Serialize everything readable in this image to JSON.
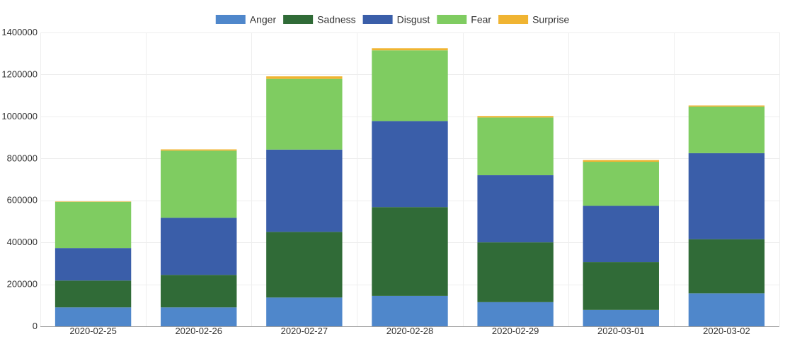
{
  "chart_data": {
    "type": "bar",
    "stacked": true,
    "categories": [
      "2020-02-25",
      "2020-02-26",
      "2020-02-27",
      "2020-02-28",
      "2020-02-29",
      "2020-03-01",
      "2020-03-02"
    ],
    "series": [
      {
        "name": "Anger",
        "color": "#4f87cb",
        "values": [
          90000,
          90000,
          137000,
          145000,
          115000,
          78000,
          157000
        ]
      },
      {
        "name": "Sadness",
        "color": "#306b37",
        "values": [
          128000,
          155000,
          313000,
          423000,
          285000,
          228000,
          258000
        ]
      },
      {
        "name": "Disgust",
        "color": "#3a5ea9",
        "values": [
          155000,
          272000,
          392000,
          410000,
          320000,
          268000,
          410000
        ]
      },
      {
        "name": "Fear",
        "color": "#7fcc61",
        "values": [
          220000,
          320000,
          337000,
          337000,
          275000,
          210000,
          222000
        ]
      },
      {
        "name": "Surprise",
        "color": "#f0b432",
        "values": [
          2000,
          6000,
          12000,
          10000,
          7000,
          8000,
          5000
        ]
      }
    ],
    "yticks": [
      "0",
      "200000",
      "400000",
      "600000",
      "800000",
      "1000000",
      "1200000",
      "1400000"
    ],
    "ylim": [
      0,
      1400000
    ],
    "title": "",
    "xlabel": "",
    "ylabel": "",
    "legend": "top-center",
    "grid": true
  }
}
